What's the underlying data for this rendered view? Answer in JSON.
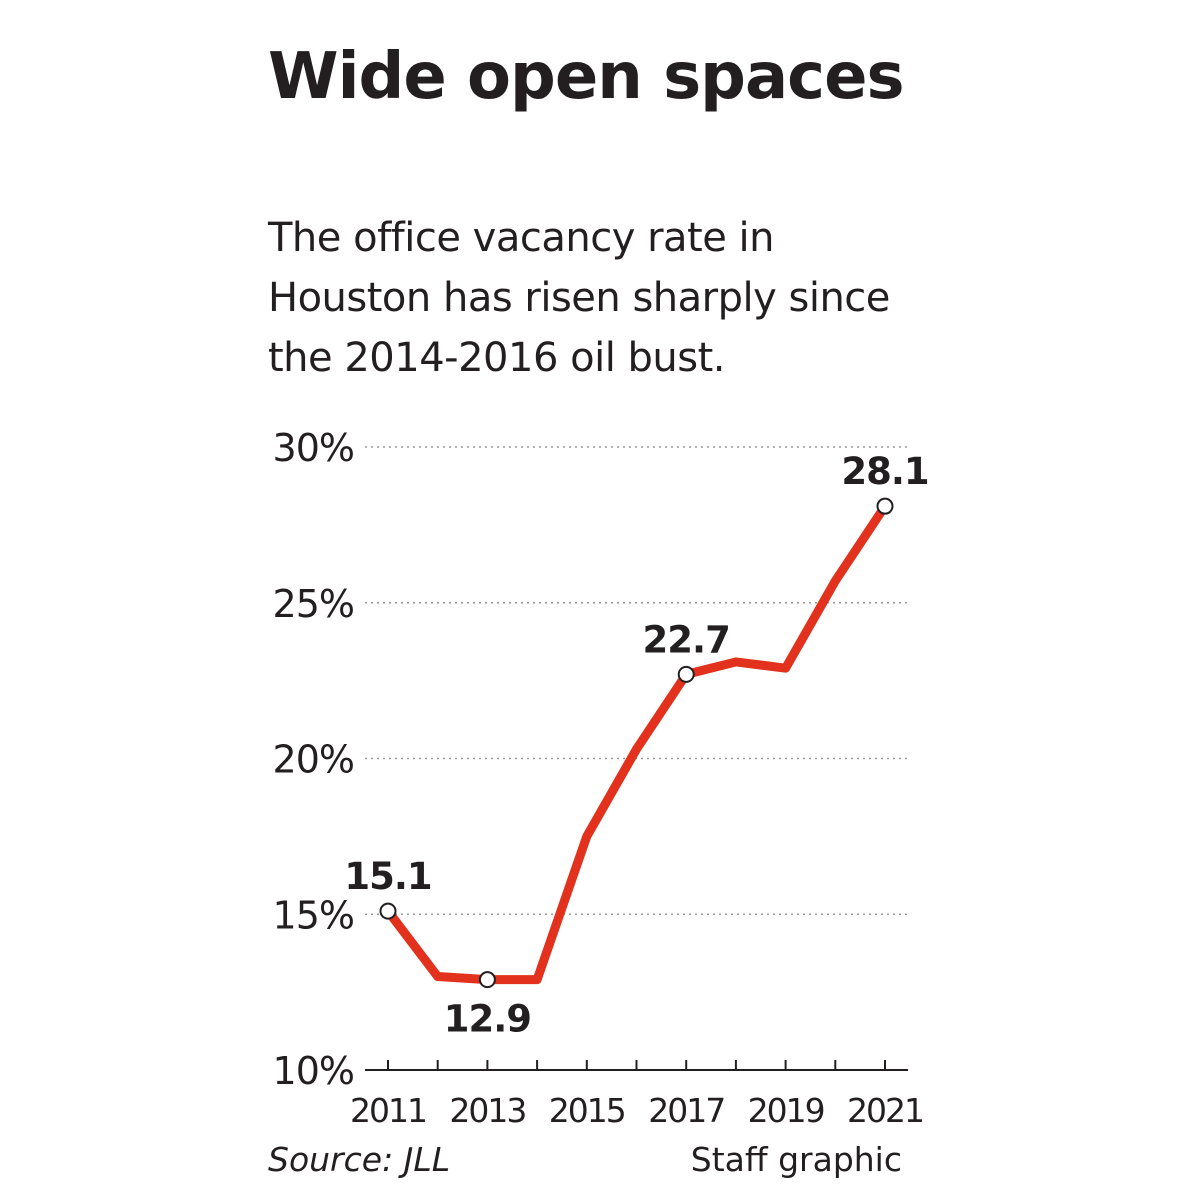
{
  "title": "Wide open spaces",
  "subtitle": "The office vacancy rate in Houston has risen sharply since the 2014-2016 oil bust.",
  "source": "Source: JLL",
  "credit": "Staff graphic",
  "colors": {
    "line": "#e2321d",
    "text": "#231f20",
    "grid": "#9a9a9a"
  },
  "chart_data": {
    "type": "line",
    "x": [
      2011,
      2012,
      2013,
      2014,
      2015,
      2016,
      2017,
      2018,
      2019,
      2020,
      2021
    ],
    "series": [
      {
        "values": [
          15.1,
          13.0,
          12.9,
          12.9,
          17.5,
          20.3,
          22.7,
          23.1,
          22.9,
          25.7,
          28.1
        ]
      }
    ],
    "ylim": [
      10,
      30
    ],
    "yticks": [
      10,
      15,
      20,
      25,
      30
    ],
    "ytick_labels": [
      "10%",
      "15%",
      "20%",
      "25%",
      "30%"
    ],
    "xtick_labels": [
      "2011",
      "2013",
      "2015",
      "2017",
      "2019",
      "2021"
    ],
    "data_labels": [
      {
        "x": 2011,
        "label": "15.1",
        "position": "above"
      },
      {
        "x": 2013,
        "label": "12.9",
        "position": "below"
      },
      {
        "x": 2017,
        "label": "22.7",
        "position": "above"
      },
      {
        "x": 2021,
        "label": "28.1",
        "position": "above"
      }
    ],
    "grid": true
  }
}
